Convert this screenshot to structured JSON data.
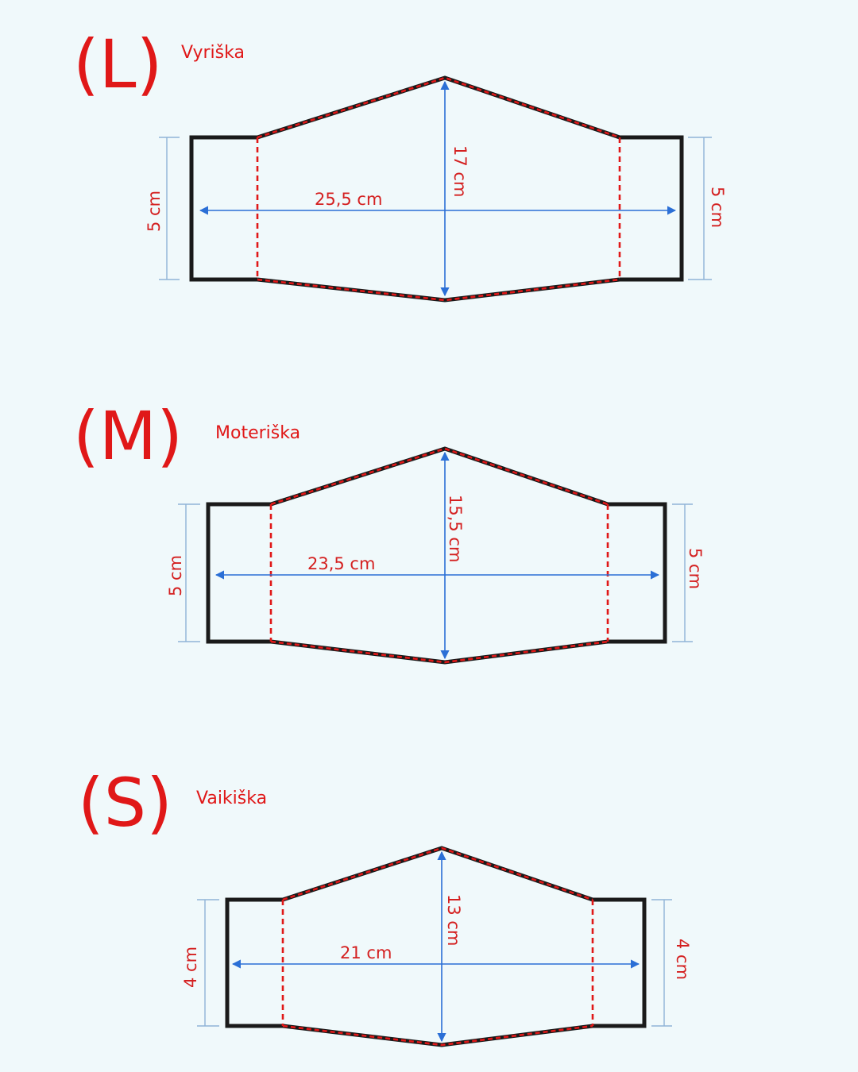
{
  "patterns": [
    {
      "letter": "(L)",
      "name": "Vyriška",
      "width_label": "25,5 cm",
      "height_label": "17 cm",
      "left_side_label": "5 cm",
      "right_side_label": "5 cm"
    },
    {
      "letter": "(M)",
      "name": "Moteriška",
      "width_label": "23,5 cm",
      "height_label": "15,5 cm",
      "left_side_label": "5 cm",
      "right_side_label": "5 cm"
    },
    {
      "letter": "(S)",
      "name": "Vaikiška",
      "width_label": "21 cm",
      "height_label": "13 cm",
      "left_side_label": "4 cm",
      "right_side_label": "4 cm"
    }
  ],
  "colors": {
    "background": "#f0f9fb",
    "accent_red": "#e01818",
    "outline_black": "#1a1a1a",
    "dimension_blue": "#2b6fd6"
  }
}
